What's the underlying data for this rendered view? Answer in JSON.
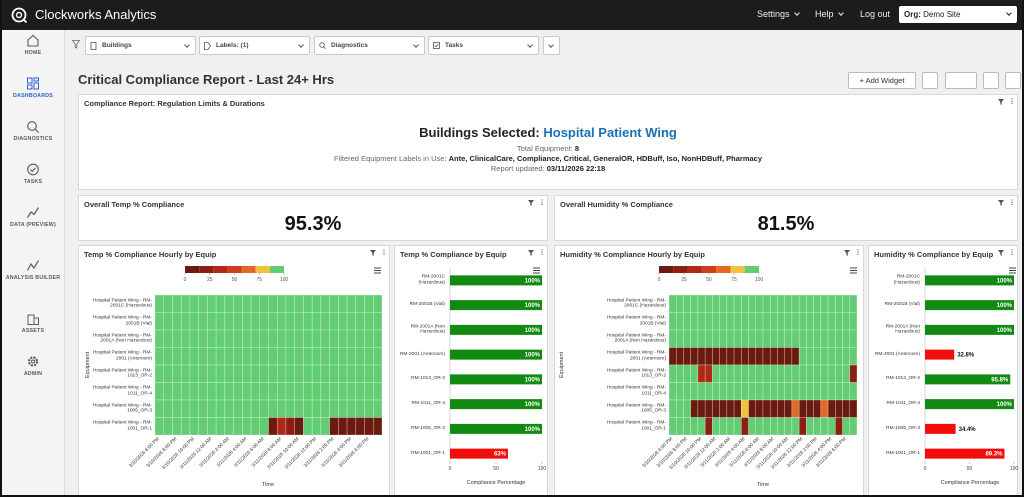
{
  "header": {
    "app_name": "Clockworks Analytics",
    "menu": [
      "Settings",
      "Help"
    ],
    "logout": "Log out",
    "org_label": "Org:",
    "org_value": "Demo Site"
  },
  "sidebar": [
    {
      "label": "HOME"
    },
    {
      "label": "DASHBOARDS",
      "active": true
    },
    {
      "label": "DIAGNOSTICS"
    },
    {
      "label": "TASKS"
    },
    {
      "label": "DATA (PREVIEW)"
    },
    {
      "label": "ANALYSIS BUILDER"
    },
    {
      "label": "ASSETS"
    },
    {
      "label": "ADMIN"
    }
  ],
  "filters": [
    "Buildings",
    "Labels: (1)",
    "Diagnostics",
    "Tasks"
  ],
  "page": {
    "title": "Critical Compliance Report - Last 24+ Hrs",
    "add_widget": "+ Add Widget"
  },
  "summary": {
    "title": "Compliance Report: Regulation Limits & Durations",
    "buildings_label": "Buildings Selected:",
    "buildings_value": "Hospital Patient Wing",
    "equipment_label": "Total Equipment:",
    "equipment_value": 8,
    "labels_label": "Filtered Equipment Labels in Use:",
    "labels_value": "Ante, ClinicalCare, Compliance, Critical, GeneralOR, HDBuff, Iso, NonHDBuff, Pharmacy",
    "updated_label": "Report updated:",
    "updated_value": "03/11/2026 22:18"
  },
  "kpis": [
    {
      "title": "Overall Temp % Compliance",
      "value": "95.3%"
    },
    {
      "title": "Overall Humidity % Compliance",
      "value": "81.5%"
    }
  ],
  "chart_data": [
    {
      "type": "heatmap",
      "title": "Temp % Compliance Hourly by Equip",
      "rows": [
        "Hospital Patient Wing - RM-2001C (Hazardous)",
        "Hospital Patient Wing - RM-2001B (Vial)",
        "Hospital Patient Wing - RM-2001A (Non Hazardous)",
        "Hospital Patient Wing - RM-2001 (Anteroom)",
        "Hospital Patient Wing - RM-1013_OR-2",
        "Hospital Patient Wing - RM-1011_OR-4",
        "Hospital Patient Wing - RM-1005_OR-3",
        "Hospital Patient Wing - RM-1001_OR-1"
      ],
      "x": [
        "3/10/2026 6:00 PM",
        null,
        "3/10/2026 8:00 PM",
        null,
        "3/10/2026 10:00 PM",
        null,
        "3/11/2026 12:00 AM",
        null,
        "3/11/2026 2:00 AM",
        null,
        "3/11/2026 4:00 AM",
        null,
        "3/11/2026 6:00 AM",
        null,
        "3/11/2026 8:00 AM",
        null,
        "3/11/2026 10:00 AM",
        null,
        "3/11/2026 12:00 PM",
        null,
        "3/11/2026 2:00 PM",
        null,
        "3/11/2026 4:00 PM",
        null,
        "3/11/2026 6:00 PM",
        null
      ],
      "values": [
        [
          100,
          100,
          100,
          100,
          100,
          100,
          100,
          100,
          100,
          100,
          100,
          100,
          100,
          100,
          100,
          100,
          100,
          100,
          100,
          100,
          100,
          100,
          100,
          100,
          100,
          100
        ],
        [
          100,
          100,
          100,
          100,
          100,
          100,
          100,
          100,
          100,
          100,
          100,
          100,
          100,
          100,
          100,
          100,
          100,
          100,
          100,
          100,
          100,
          100,
          100,
          100,
          100,
          100
        ],
        [
          100,
          100,
          100,
          100,
          100,
          100,
          100,
          100,
          100,
          100,
          100,
          100,
          100,
          100,
          100,
          100,
          100,
          100,
          100,
          100,
          100,
          100,
          100,
          100,
          100,
          100
        ],
        [
          100,
          100,
          100,
          100,
          100,
          100,
          100,
          100,
          100,
          100,
          100,
          100,
          100,
          100,
          100,
          100,
          100,
          100,
          100,
          100,
          100,
          100,
          100,
          100,
          100,
          100
        ],
        [
          100,
          100,
          100,
          100,
          100,
          100,
          100,
          100,
          100,
          100,
          100,
          100,
          100,
          100,
          100,
          100,
          100,
          100,
          100,
          100,
          100,
          100,
          100,
          100,
          100,
          100
        ],
        [
          100,
          100,
          100,
          100,
          100,
          100,
          100,
          100,
          100,
          100,
          100,
          100,
          100,
          100,
          100,
          100,
          100,
          100,
          100,
          100,
          100,
          100,
          100,
          100,
          100,
          100
        ],
        [
          100,
          100,
          100,
          100,
          100,
          100,
          100,
          100,
          100,
          100,
          100,
          100,
          100,
          100,
          100,
          100,
          100,
          100,
          100,
          100,
          100,
          100,
          100,
          100,
          100,
          100
        ],
        [
          100,
          100,
          100,
          100,
          100,
          100,
          100,
          100,
          100,
          100,
          100,
          100,
          100,
          0,
          35,
          10,
          0,
          100,
          100,
          100,
          0,
          0,
          0,
          0,
          0,
          0
        ]
      ],
      "zlim": [
        0,
        100
      ],
      "zticks": [
        0,
        25,
        50,
        75,
        100
      ],
      "colorscale": [
        "#6b1a0f",
        "#8c1f12",
        "#b02816",
        "#cf3e1c",
        "#e26a26",
        "#f0c23e",
        "#63cd73"
      ],
      "xlabel": "Time",
      "ylabel": "Equipment"
    },
    {
      "type": "bar",
      "orientation": "horizontal",
      "title": "Temp % Compliance by Equip",
      "categories": [
        "RM-2001C (Hazardous)",
        "RM-2001B (Vial)",
        "RM-2001A (Non Hazardous)",
        "RM-2001 (Anteroom)",
        "RM-1013_OR-2",
        "RM-1011_OR-4",
        "RM-1005_OR-3",
        "RM-1001_OR-1"
      ],
      "values": [
        100,
        100,
        100,
        100,
        100,
        100,
        100,
        63
      ],
      "value_labels": [
        "100%",
        "100%",
        "100%",
        "100%",
        "100%",
        "100%",
        "100%",
        "63%"
      ],
      "colors": [
        "#128a12",
        "#128a12",
        "#128a12",
        "#128a12",
        "#128a12",
        "#128a12",
        "#128a12",
        "#f20d0d"
      ],
      "xlim": [
        0,
        100
      ],
      "xticks": [
        0,
        50,
        100
      ],
      "xlabel": "Compliance Percentage"
    },
    {
      "type": "heatmap",
      "title": "Humidity % Compliance Hourly by Equip",
      "rows": [
        "Hospital Patient Wing - RM-2001C (Hazardous)",
        "Hospital Patient Wing - RM-2001B (Vial)",
        "Hospital Patient Wing - RM-2001A (Non Hazardous)",
        "Hospital Patient Wing - RM-2001 (Anteroom)",
        "Hospital Patient Wing - RM-1013_OR-2",
        "Hospital Patient Wing - RM-1011_OR-4",
        "Hospital Patient Wing - RM-1005_OR-3",
        "Hospital Patient Wing - RM-1001_OR-1"
      ],
      "x": [
        "3/10/2026 6:00 PM",
        null,
        "3/10/2026 8:00 PM",
        null,
        "3/10/2026 10:00 PM",
        null,
        "3/11/2026 12:00 AM",
        null,
        "3/11/2026 2:00 AM",
        null,
        "3/11/2026 4:00 AM",
        null,
        "3/11/2026 6:00 AM",
        null,
        "3/11/2026 8:00 AM",
        null,
        "3/11/2026 10:00 AM",
        null,
        "3/11/2026 12:00 PM",
        null,
        "3/11/2026 2:00 PM",
        null,
        "3/11/2026 4:00 PM",
        null,
        "3/11/2026 6:00 PM",
        null
      ],
      "values": [
        [
          100,
          100,
          100,
          100,
          100,
          100,
          100,
          100,
          100,
          100,
          100,
          100,
          100,
          100,
          100,
          100,
          100,
          100,
          100,
          100,
          100,
          100,
          100,
          100,
          100,
          100
        ],
        [
          100,
          100,
          100,
          100,
          100,
          100,
          100,
          100,
          100,
          100,
          100,
          100,
          100,
          100,
          100,
          100,
          100,
          100,
          100,
          100,
          100,
          100,
          100,
          100,
          100,
          100
        ],
        [
          100,
          100,
          100,
          100,
          100,
          100,
          100,
          100,
          100,
          100,
          100,
          100,
          100,
          100,
          100,
          100,
          100,
          100,
          100,
          100,
          100,
          100,
          100,
          100,
          100,
          100
        ],
        [
          0,
          0,
          0,
          0,
          0,
          0,
          0,
          0,
          0,
          0,
          0,
          0,
          0,
          0,
          0,
          0,
          0,
          0,
          100,
          100,
          100,
          100,
          100,
          100,
          100,
          100
        ],
        [
          100,
          100,
          100,
          100,
          40,
          35,
          100,
          100,
          100,
          100,
          100,
          100,
          100,
          100,
          100,
          100,
          100,
          100,
          100,
          100,
          100,
          100,
          100,
          100,
          100,
          20
        ],
        [
          100,
          100,
          100,
          100,
          100,
          100,
          100,
          100,
          100,
          100,
          100,
          100,
          100,
          100,
          100,
          100,
          100,
          100,
          100,
          100,
          100,
          100,
          100,
          100,
          100,
          100
        ],
        [
          100,
          100,
          100,
          0,
          0,
          0,
          0,
          0,
          0,
          0,
          75,
          0,
          0,
          0,
          0,
          0,
          0,
          70,
          0,
          0,
          0,
          60,
          0,
          0,
          0,
          0
        ],
        [
          100,
          100,
          100,
          100,
          100,
          20,
          100,
          100,
          100,
          100,
          20,
          100,
          100,
          100,
          100,
          100,
          100,
          100,
          20,
          100,
          100,
          100,
          100,
          20,
          100,
          100
        ]
      ],
      "zlim": [
        0,
        100
      ],
      "zticks": [
        0,
        25,
        50,
        75,
        100
      ],
      "colorscale": [
        "#6b1a0f",
        "#8c1f12",
        "#b02816",
        "#cf3e1c",
        "#e26a26",
        "#f0c23e",
        "#63cd73"
      ],
      "xlabel": "Time",
      "ylabel": "Equipment"
    },
    {
      "type": "bar",
      "orientation": "horizontal",
      "title": "Humidity % Compliance by Equip",
      "categories": [
        "RM-2001C (Hazardous)",
        "RM-2001B (Vial)",
        "RM-2001A (Non Hazardous)",
        "RM-2001 (Anteroom)",
        "RM-1013_OR-2",
        "RM-1011_OR-4",
        "RM-1005_OR-3",
        "RM-1001_OR-1"
      ],
      "values": [
        100,
        100,
        100,
        32.8,
        95.8,
        100,
        34.4,
        89.3
      ],
      "value_labels": [
        "100%",
        "100%",
        "100%",
        "32.8%",
        "95.8%",
        "100%",
        "34.4%",
        "89.3%"
      ],
      "colors": [
        "#128a12",
        "#128a12",
        "#128a12",
        "#f20d0d",
        "#128a12",
        "#128a12",
        "#f20d0d",
        "#f20d0d"
      ],
      "xlim": [
        0,
        100
      ],
      "xticks": [
        0,
        50,
        100
      ],
      "xlabel": "Compliance Percentage"
    }
  ]
}
